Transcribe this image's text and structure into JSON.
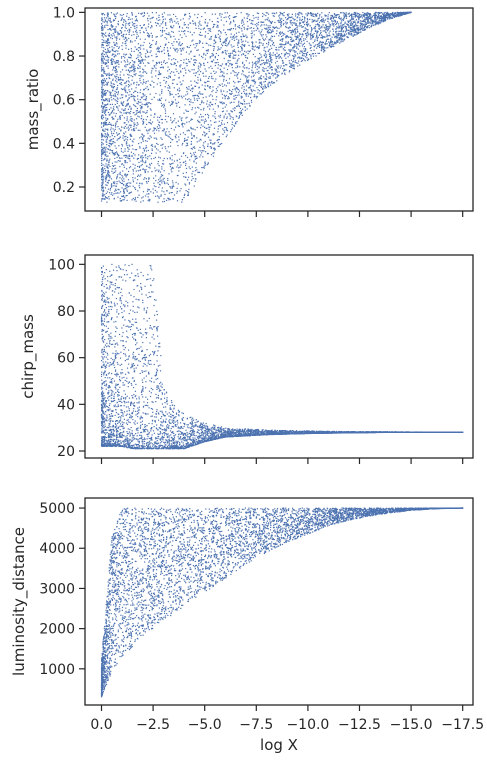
{
  "chart_data": [
    {
      "type": "scatter",
      "name": "mass-ratio-panel",
      "xlabel": "",
      "ylabel": "mass_ratio",
      "xlim": [
        0.8,
        -18.0
      ],
      "ylim": [
        0.09,
        1.02
      ],
      "xticks": [
        0.0,
        -2.5,
        -5.0,
        -7.5,
        -10.0,
        -12.5,
        -15.0,
        -17.5
      ],
      "yticks": [
        0.2,
        0.4,
        0.6,
        0.8,
        1.0
      ],
      "yticklabels": [
        "0.2",
        "0.4",
        "0.6",
        "0.8",
        "1.0"
      ],
      "show_xticklabels": false,
      "color": "#4c72b0",
      "grid": false,
      "envelope": {
        "x": [
          0.0,
          -1.0,
          -2.0,
          -3.0,
          -4.0,
          -5.0,
          -6.0,
          -7.0,
          -8.0,
          -9.0,
          -10.0,
          -11.0,
          -12.0,
          -13.0,
          -14.0,
          -15.0
        ],
        "y_low": [
          0.13,
          0.13,
          0.13,
          0.13,
          0.13,
          0.28,
          0.42,
          0.55,
          0.65,
          0.72,
          0.78,
          0.83,
          0.88,
          0.93,
          0.97,
          1.0
        ],
        "y_high": [
          1.0,
          1.0,
          1.0,
          1.0,
          1.0,
          1.0,
          1.0,
          1.0,
          1.0,
          1.0,
          1.0,
          1.0,
          1.0,
          1.0,
          1.0,
          1.0
        ]
      }
    },
    {
      "type": "scatter",
      "name": "chirp-mass-panel",
      "xlabel": "",
      "ylabel": "chirp_mass",
      "xlim": [
        0.8,
        -18.0
      ],
      "ylim": [
        17.0,
        104.0
      ],
      "xticks": [
        0.0,
        -2.5,
        -5.0,
        -7.5,
        -10.0,
        -12.5,
        -15.0,
        -17.5
      ],
      "yticks": [
        20,
        40,
        60,
        80,
        100
      ],
      "yticklabels": [
        "20",
        "40",
        "60",
        "80",
        "100"
      ],
      "show_xticklabels": false,
      "color": "#4c72b0",
      "grid": false,
      "envelope": {
        "x": [
          0.0,
          -0.5,
          -1.0,
          -1.5,
          -2.0,
          -2.5,
          -3.0,
          -3.5,
          -4.0,
          -5.0,
          -6.0,
          -8.0,
          -10.0,
          -12.0,
          -14.0,
          -16.0,
          -17.5
        ],
        "y_low": [
          22,
          22,
          22,
          21,
          21,
          21,
          21,
          21,
          21,
          24,
          26,
          27,
          27.5,
          27.8,
          28,
          28,
          28
        ],
        "y_high": [
          100,
          100,
          100,
          100,
          100,
          100,
          48,
          40,
          36,
          32,
          30,
          29,
          28.6,
          28.3,
          28.2,
          28.1,
          28
        ]
      }
    },
    {
      "type": "scatter",
      "name": "luminosity-distance-panel",
      "xlabel": "log X",
      "ylabel": "luminosity_distance",
      "xlim": [
        0.8,
        -18.0
      ],
      "ylim": [
        100,
        5250
      ],
      "xticks": [
        0.0,
        -2.5,
        -5.0,
        -7.5,
        -10.0,
        -12.5,
        -15.0,
        -17.5
      ],
      "xticklabels": [
        "0.0",
        "−2.5",
        "−5.0",
        "−7.5",
        "−10.0",
        "−12.5",
        "−15.0",
        "−17.5"
      ],
      "yticks": [
        1000,
        2000,
        3000,
        4000,
        5000
      ],
      "yticklabels": [
        "1000",
        "2000",
        "3000",
        "4000",
        "5000"
      ],
      "show_xticklabels": true,
      "color": "#4c72b0",
      "grid": false,
      "envelope": {
        "x": [
          0.0,
          -0.5,
          -1.0,
          -2.0,
          -3.0,
          -4.0,
          -5.0,
          -6.0,
          -7.0,
          -8.0,
          -9.0,
          -10.0,
          -11.0,
          -12.0,
          -13.0,
          -14.0,
          -15.0,
          -16.0,
          -17.5
        ],
        "y_low": [
          300,
          900,
          1300,
          1800,
          2200,
          2550,
          2900,
          3250,
          3600,
          3900,
          4150,
          4350,
          4550,
          4700,
          4800,
          4880,
          4940,
          4980,
          5000
        ],
        "y_high": [
          1200,
          4300,
          5000,
          5000,
          5000,
          5000,
          5000,
          5000,
          5000,
          5000,
          5000,
          5000,
          5000,
          5000,
          5000,
          5000,
          5000,
          5000,
          5000
        ]
      }
    }
  ]
}
